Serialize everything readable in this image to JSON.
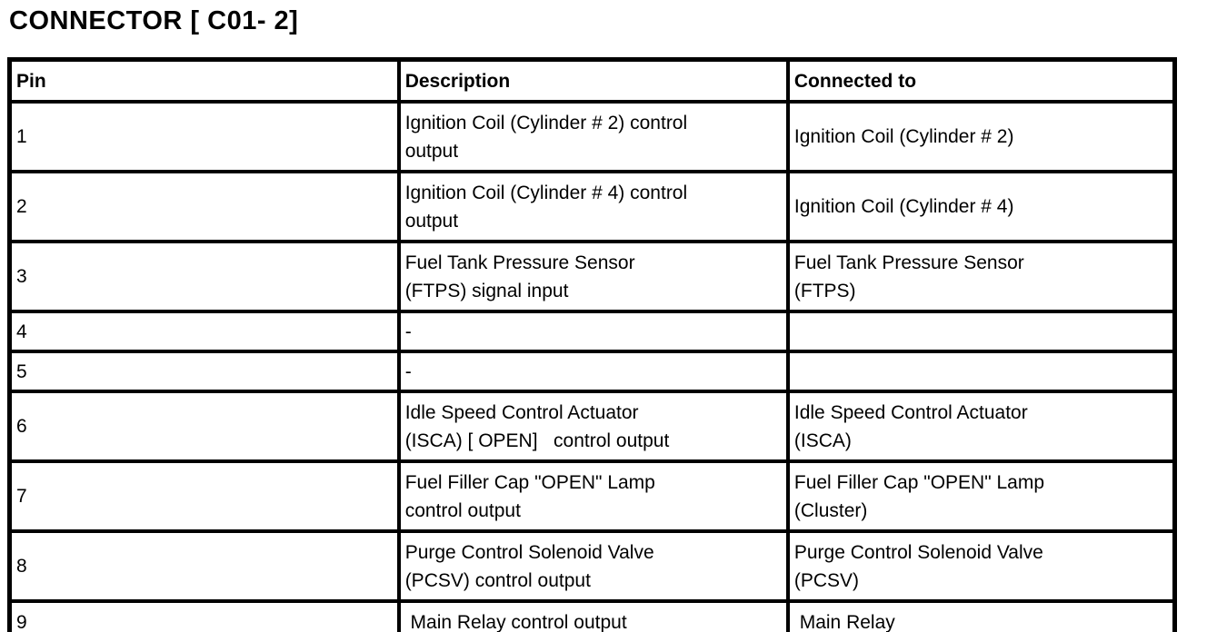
{
  "page_title": "CONNECTOR [ C01- 2]",
  "colors": {
    "text": "#000000",
    "background": "#ffffff",
    "table_border": "#000000"
  },
  "table": {
    "headers": {
      "pin": "Pin",
      "description": "Description",
      "connected_to": "Connected to"
    },
    "rows": [
      {
        "pin": "1",
        "description": "Ignition Coil (Cylinder # 2) control\noutput",
        "connected_to": "Ignition Coil (Cylinder # 2)"
      },
      {
        "pin": "2",
        "description": "Ignition Coil (Cylinder # 4) control\noutput",
        "connected_to": "Ignition Coil (Cylinder # 4)"
      },
      {
        "pin": "3",
        "description": "Fuel Tank Pressure Sensor\n(FTPS) signal input",
        "connected_to": "Fuel Tank Pressure Sensor\n(FTPS)"
      },
      {
        "pin": "4",
        "description": "-",
        "connected_to": ""
      },
      {
        "pin": "5",
        "description": "-",
        "connected_to": ""
      },
      {
        "pin": "6",
        "description": "Idle Speed Control Actuator\n(ISCA) [ OPEN]   control output",
        "connected_to": "Idle Speed Control Actuator\n(ISCA)"
      },
      {
        "pin": "7",
        "description": "Fuel Filler Cap \"OPEN\" Lamp\ncontrol output",
        "connected_to": "Fuel Filler Cap \"OPEN\" Lamp\n(Cluster)"
      },
      {
        "pin": "8",
        "description": "Purge Control Solenoid Valve\n(PCSV) control output",
        "connected_to": "Purge Control Solenoid Valve\n(PCSV)"
      },
      {
        "pin": "9",
        "description": " Main Relay control output",
        "connected_to": " Main Relay"
      }
    ]
  }
}
